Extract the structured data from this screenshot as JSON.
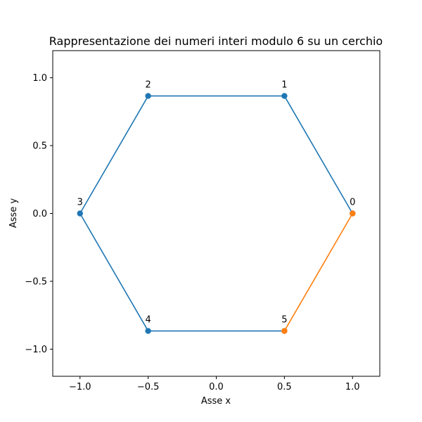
{
  "chart_data": {
    "type": "line",
    "title": "Rappresentazione dei numeri interi modulo 6 su un cerchio",
    "xlabel": "Asse x",
    "ylabel": "Asse y",
    "xlim": [
      -1.2,
      1.2
    ],
    "ylim": [
      -1.2,
      1.2
    ],
    "grid": false,
    "x_ticks": [
      -1.0,
      -0.5,
      0.0,
      0.5,
      1.0
    ],
    "y_ticks": [
      -1.0,
      -0.5,
      0.0,
      0.5,
      1.0
    ],
    "x_tick_labels": [
      "−1.0",
      "−0.5",
      "0.0",
      "0.5",
      "1.0"
    ],
    "y_tick_labels": [
      "−1.0",
      "−0.5",
      "0.0",
      "0.5",
      "1.0"
    ],
    "series": [
      {
        "color": "#1f77b4",
        "points": [
          {
            "x": 1.0,
            "y": 0.0
          },
          {
            "x": 0.5,
            "y": 0.866
          },
          {
            "x": -0.5,
            "y": 0.866
          },
          {
            "x": -1.0,
            "y": 0.0
          },
          {
            "x": -0.5,
            "y": -0.866
          },
          {
            "x": 0.5,
            "y": -0.866
          }
        ]
      },
      {
        "color": "#ff7f0e",
        "points": [
          {
            "x": 0.5,
            "y": -0.866
          },
          {
            "x": 1.0,
            "y": 0.0
          }
        ]
      }
    ],
    "annotations": [
      {
        "text": "0",
        "x": 1.0,
        "y": 0.0
      },
      {
        "text": "1",
        "x": 0.5,
        "y": 0.866
      },
      {
        "text": "2",
        "x": -0.5,
        "y": 0.866
      },
      {
        "text": "3",
        "x": -1.0,
        "y": 0.0
      },
      {
        "text": "4",
        "x": -0.5,
        "y": -0.866
      },
      {
        "text": "5",
        "x": 0.5,
        "y": -0.866
      }
    ]
  }
}
